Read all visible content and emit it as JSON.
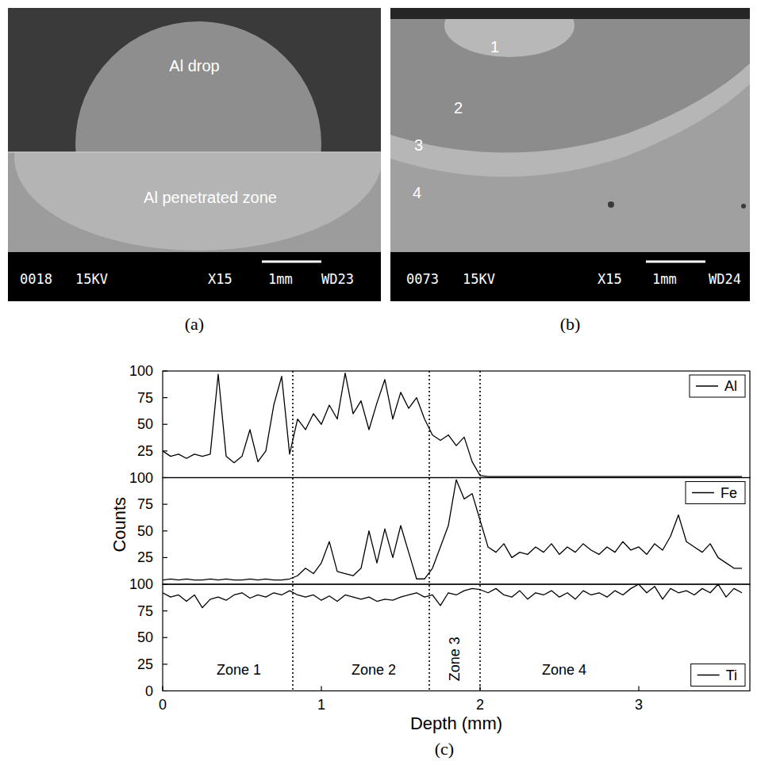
{
  "figure": {
    "micrographs": [
      {
        "label": "(a)",
        "annotations": [
          "Al drop",
          "Al penetrated zone"
        ],
        "info_bar": [
          "0018",
          "15KV",
          "X15",
          "1mm",
          "WD23"
        ]
      },
      {
        "label": "(b)",
        "annotations": [
          "1",
          "2",
          "3",
          "4"
        ],
        "info_bar": [
          "0073",
          "15KV",
          "X15",
          "1mm",
          "WD24"
        ]
      }
    ],
    "chart_label": "(c)"
  },
  "chart_data": [
    {
      "type": "line",
      "x": [
        0,
        0.05,
        0.1,
        0.15,
        0.2,
        0.25,
        0.3,
        0.35,
        0.4,
        0.45,
        0.5,
        0.55,
        0.6,
        0.65,
        0.7,
        0.75,
        0.8,
        0.85,
        0.9,
        0.95,
        1,
        1.05,
        1.1,
        1.15,
        1.2,
        1.25,
        1.3,
        1.35,
        1.4,
        1.45,
        1.5,
        1.55,
        1.6,
        1.65,
        1.7,
        1.75,
        1.8,
        1.85,
        1.9,
        1.95,
        2,
        2.05,
        2.1,
        2.15,
        2.2,
        2.25,
        2.3,
        2.35,
        2.4,
        2.45,
        2.5,
        2.55,
        2.6,
        2.65,
        2.7,
        2.75,
        2.8,
        2.85,
        2.9,
        2.95,
        3,
        3.05,
        3.1,
        3.15,
        3.2,
        3.25,
        3.3,
        3.35,
        3.4,
        3.45,
        3.5,
        3.55,
        3.6,
        3.65
      ],
      "series": [
        {
          "name": "Al",
          "color": "#000000",
          "values": [
            25,
            20,
            22,
            18,
            22,
            20,
            22,
            97,
            20,
            14,
            20,
            45,
            15,
            25,
            68,
            95,
            22,
            55,
            45,
            60,
            50,
            68,
            55,
            98,
            60,
            72,
            45,
            70,
            92,
            55,
            80,
            65,
            75,
            55,
            40,
            35,
            40,
            30,
            38,
            15,
            2,
            1,
            1,
            1,
            1,
            1,
            1,
            1,
            1,
            1,
            1,
            1,
            1,
            1,
            1,
            1,
            1,
            1,
            1,
            1,
            1,
            1,
            1,
            1,
            1,
            1,
            1,
            1,
            1,
            1,
            1,
            1,
            1,
            1
          ]
        }
      ],
      "xlim": [
        0,
        3.7
      ],
      "ylim": [
        0,
        100
      ],
      "yticks": [
        25,
        50,
        75,
        100
      ],
      "tick_labels": "y",
      "legend": "top-right"
    },
    {
      "type": "line",
      "x": [
        0,
        0.05,
        0.1,
        0.15,
        0.2,
        0.25,
        0.3,
        0.35,
        0.4,
        0.45,
        0.5,
        0.55,
        0.6,
        0.65,
        0.7,
        0.75,
        0.8,
        0.85,
        0.9,
        0.95,
        1,
        1.05,
        1.1,
        1.15,
        1.2,
        1.25,
        1.3,
        1.35,
        1.4,
        1.45,
        1.5,
        1.55,
        1.6,
        1.65,
        1.7,
        1.75,
        1.8,
        1.85,
        1.9,
        1.95,
        2,
        2.05,
        2.1,
        2.15,
        2.2,
        2.25,
        2.3,
        2.35,
        2.4,
        2.45,
        2.5,
        2.55,
        2.6,
        2.65,
        2.7,
        2.75,
        2.8,
        2.85,
        2.9,
        2.95,
        3,
        3.05,
        3.1,
        3.15,
        3.2,
        3.25,
        3.3,
        3.35,
        3.4,
        3.45,
        3.5,
        3.55,
        3.6,
        3.65
      ],
      "series": [
        {
          "name": "Fe",
          "color": "#000000",
          "values": [
            4,
            5,
            4,
            5,
            4,
            4,
            5,
            4,
            5,
            4,
            4,
            5,
            4,
            5,
            4,
            4,
            5,
            8,
            15,
            10,
            20,
            40,
            12,
            10,
            8,
            15,
            50,
            20,
            52,
            25,
            55,
            30,
            5,
            5,
            15,
            35,
            55,
            98,
            80,
            85,
            60,
            35,
            30,
            38,
            25,
            30,
            28,
            35,
            30,
            38,
            28,
            35,
            30,
            38,
            32,
            28,
            35,
            30,
            40,
            32,
            35,
            28,
            38,
            32,
            45,
            65,
            40,
            35,
            30,
            38,
            25,
            20,
            15,
            15
          ]
        }
      ],
      "xlim": [
        0,
        3.7
      ],
      "ylim": [
        0,
        100
      ],
      "yticks": [
        25,
        50,
        75,
        100
      ],
      "tick_labels": "y",
      "legend": "top-right",
      "y_label": "Counts"
    },
    {
      "type": "line",
      "x": [
        0,
        0.05,
        0.1,
        0.15,
        0.2,
        0.25,
        0.3,
        0.35,
        0.4,
        0.45,
        0.5,
        0.55,
        0.6,
        0.65,
        0.7,
        0.75,
        0.8,
        0.85,
        0.9,
        0.95,
        1,
        1.05,
        1.1,
        1.15,
        1.2,
        1.25,
        1.3,
        1.35,
        1.4,
        1.45,
        1.5,
        1.55,
        1.6,
        1.65,
        1.7,
        1.75,
        1.8,
        1.85,
        1.9,
        1.95,
        2,
        2.05,
        2.1,
        2.15,
        2.2,
        2.25,
        2.3,
        2.35,
        2.4,
        2.45,
        2.5,
        2.55,
        2.6,
        2.65,
        2.7,
        2.75,
        2.8,
        2.85,
        2.9,
        2.95,
        3,
        3.05,
        3.1,
        3.15,
        3.2,
        3.25,
        3.3,
        3.35,
        3.4,
        3.45,
        3.5,
        3.55,
        3.6,
        3.65
      ],
      "series": [
        {
          "name": "Ti",
          "color": "#000000",
          "values": [
            92,
            88,
            90,
            84,
            90,
            78,
            86,
            88,
            85,
            90,
            92,
            87,
            90,
            88,
            92,
            90,
            94,
            90,
            88,
            90,
            85,
            89,
            84,
            90,
            88,
            86,
            88,
            84,
            86,
            85,
            88,
            90,
            92,
            88,
            90,
            80,
            92,
            90,
            94,
            96,
            95,
            92,
            96,
            90,
            88,
            94,
            86,
            92,
            90,
            94,
            88,
            92,
            86,
            94,
            90,
            92,
            88,
            94,
            90,
            96,
            100,
            92,
            98,
            86,
            96,
            92,
            94,
            90,
            96,
            92,
            100,
            88,
            96,
            92
          ]
        }
      ],
      "xlim": [
        0,
        3.7
      ],
      "xticks": [
        0,
        1,
        2,
        3
      ],
      "ylim": [
        0,
        100
      ],
      "yticks": [
        0,
        25,
        50,
        75,
        100
      ],
      "legend": "bottom-right",
      "x_label": "Depth (mm)",
      "zone_boundaries": [
        0.82,
        1.68,
        2.0
      ],
      "annotations": [
        {
          "text": "Zone 1",
          "x": 0.48,
          "y": 20
        },
        {
          "text": "Zone 2",
          "x": 1.33,
          "y": 20
        },
        {
          "text": "Zone 3",
          "x": 1.84,
          "y": 30
        },
        {
          "text": "Zone 4",
          "x": 2.53,
          "y": 20
        }
      ]
    }
  ]
}
